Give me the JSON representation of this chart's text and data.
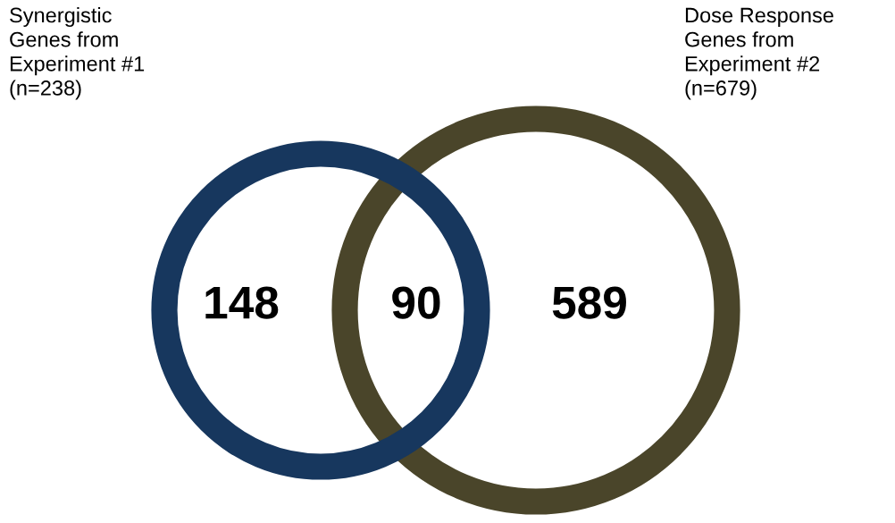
{
  "chart_data": {
    "type": "other",
    "categories": [
      null,
      null,
      null
    ],
    "values": [
      148,
      90,
      589
    ],
    "data_labels": true,
    "annotations": [
      "Synergistic Genes from Experiment #1 (n=238)",
      "Dose Response Genes from Experiment #2 (n=679)"
    ]
  }
}
